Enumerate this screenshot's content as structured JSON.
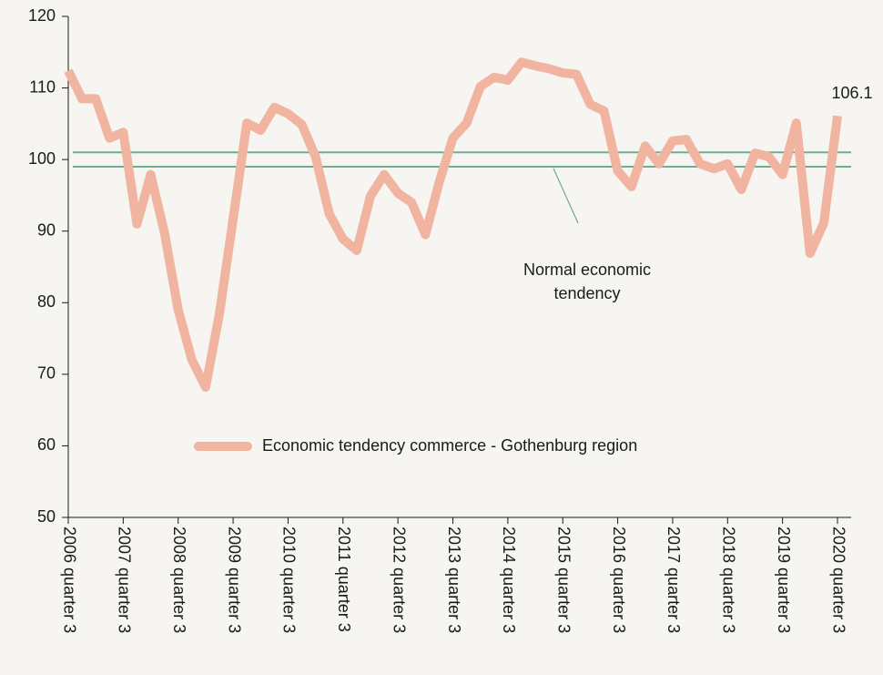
{
  "chart_data": {
    "type": "line",
    "categories": [
      "2006 quarter 3",
      null,
      null,
      null,
      "2007 quarter 3",
      null,
      null,
      null,
      "2008 quarter 3",
      null,
      null,
      null,
      "2009 quarter 3",
      null,
      null,
      null,
      "2010 quarter 3",
      null,
      null,
      null,
      "2011 quarter 3",
      null,
      null,
      null,
      "2012 quarter 3",
      null,
      null,
      null,
      "2013 quarter 3",
      null,
      null,
      null,
      "2014 quarter 3",
      null,
      null,
      null,
      "2015 quarter 3",
      null,
      null,
      null,
      "2016 quarter 3",
      null,
      null,
      null,
      "2017 quarter 3",
      null,
      null,
      null,
      "2018 quarter 3",
      null,
      null,
      null,
      "2019 quarter 3",
      null,
      null,
      null,
      "2020 quarter 3"
    ],
    "series": [
      {
        "name": "Economic tendency commerce - Gothenburg region",
        "color": "#f0b4a0",
        "values": [
          112.4,
          108.5,
          108.5,
          103,
          103.8,
          91,
          97.9,
          89.8,
          79,
          72,
          68.2,
          78.4,
          91.7,
          105.1,
          104.1,
          107.3,
          106.4,
          104.9,
          100.4,
          92.4,
          88.9,
          87.3,
          94.9,
          97.9,
          95.3,
          94,
          89.5,
          96.8,
          103,
          105.1,
          110.2,
          111.5,
          111.1,
          113.6,
          113.1,
          112.7,
          112.1,
          111.9,
          107.7,
          106.8,
          98.4,
          96.2,
          101.9,
          99.4,
          102.6,
          102.8,
          99.4,
          98.7,
          99.4,
          95.8,
          100.9,
          100.4,
          97.9,
          105.1,
          86.9,
          91.1,
          106.1
        ]
      }
    ],
    "reference_lines": [
      {
        "value": 101,
        "color": "#6fae8c"
      },
      {
        "value": 99,
        "color": "#6fae8c"
      }
    ],
    "annotation": {
      "lines": [
        "Normal economic",
        "tendency"
      ]
    },
    "ylim": [
      50,
      120
    ],
    "yticks": [
      50,
      60,
      70,
      80,
      90,
      100,
      110,
      120
    ],
    "grid": false
  }
}
